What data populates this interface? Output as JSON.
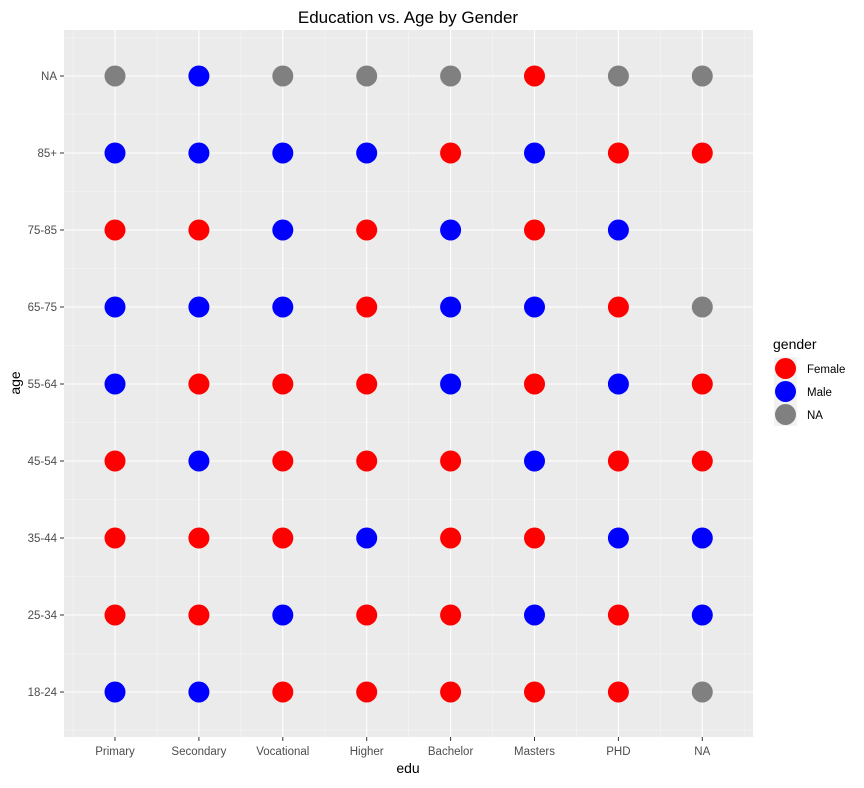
{
  "chart_data": {
    "type": "scatter",
    "title": "Education vs. Age by Gender",
    "xlabel": "edu",
    "ylabel": "age",
    "x_categories": [
      "Primary",
      "Secondary",
      "Vocational",
      "Higher",
      "Bachelor",
      "Masters",
      "PHD",
      "NA"
    ],
    "y_categories": [
      "18-24",
      "25-34",
      "35-44",
      "45-54",
      "55-64",
      "65-75",
      "75-85",
      "85+",
      "NA"
    ],
    "grid": true,
    "legend": {
      "title": "gender",
      "position": "right",
      "entries": [
        {
          "label": "Female",
          "color": "#ff0000"
        },
        {
          "label": "Male",
          "color": "#0000ff"
        },
        {
          "label": "NA",
          "color": "#808080"
        }
      ]
    },
    "colors": {
      "Female": "#ff0000",
      "Male": "#0000ff",
      "NA": "#808080",
      "panel_background": "#ebebeb",
      "grid": "#ffffff"
    },
    "points": [
      {
        "x": "Primary",
        "y": "NA",
        "gender": "NA"
      },
      {
        "x": "Secondary",
        "y": "NA",
        "gender": "Male"
      },
      {
        "x": "Vocational",
        "y": "NA",
        "gender": "NA"
      },
      {
        "x": "Higher",
        "y": "NA",
        "gender": "NA"
      },
      {
        "x": "Bachelor",
        "y": "NA",
        "gender": "NA"
      },
      {
        "x": "Masters",
        "y": "NA",
        "gender": "Female"
      },
      {
        "x": "PHD",
        "y": "NA",
        "gender": "NA"
      },
      {
        "x": "NA",
        "y": "NA",
        "gender": "NA"
      },
      {
        "x": "Primary",
        "y": "85+",
        "gender": "Male"
      },
      {
        "x": "Secondary",
        "y": "85+",
        "gender": "Male"
      },
      {
        "x": "Vocational",
        "y": "85+",
        "gender": "Male"
      },
      {
        "x": "Higher",
        "y": "85+",
        "gender": "Male"
      },
      {
        "x": "Bachelor",
        "y": "85+",
        "gender": "Female"
      },
      {
        "x": "Masters",
        "y": "85+",
        "gender": "Male"
      },
      {
        "x": "PHD",
        "y": "85+",
        "gender": "Female"
      },
      {
        "x": "NA",
        "y": "85+",
        "gender": "Female"
      },
      {
        "x": "Primary",
        "y": "75-85",
        "gender": "Female"
      },
      {
        "x": "Secondary",
        "y": "75-85",
        "gender": "Female"
      },
      {
        "x": "Vocational",
        "y": "75-85",
        "gender": "Male"
      },
      {
        "x": "Higher",
        "y": "75-85",
        "gender": "Female"
      },
      {
        "x": "Bachelor",
        "y": "75-85",
        "gender": "Male"
      },
      {
        "x": "Masters",
        "y": "75-85",
        "gender": "Female"
      },
      {
        "x": "PHD",
        "y": "75-85",
        "gender": "Male"
      },
      {
        "x": "Primary",
        "y": "65-75",
        "gender": "Male"
      },
      {
        "x": "Secondary",
        "y": "65-75",
        "gender": "Male"
      },
      {
        "x": "Vocational",
        "y": "65-75",
        "gender": "Male"
      },
      {
        "x": "Higher",
        "y": "65-75",
        "gender": "Female"
      },
      {
        "x": "Bachelor",
        "y": "65-75",
        "gender": "Male"
      },
      {
        "x": "Masters",
        "y": "65-75",
        "gender": "Male"
      },
      {
        "x": "PHD",
        "y": "65-75",
        "gender": "Female"
      },
      {
        "x": "NA",
        "y": "65-75",
        "gender": "NA"
      },
      {
        "x": "Primary",
        "y": "55-64",
        "gender": "Male"
      },
      {
        "x": "Secondary",
        "y": "55-64",
        "gender": "Female"
      },
      {
        "x": "Vocational",
        "y": "55-64",
        "gender": "Female"
      },
      {
        "x": "Higher",
        "y": "55-64",
        "gender": "Female"
      },
      {
        "x": "Bachelor",
        "y": "55-64",
        "gender": "Male"
      },
      {
        "x": "Masters",
        "y": "55-64",
        "gender": "Female"
      },
      {
        "x": "PHD",
        "y": "55-64",
        "gender": "Male"
      },
      {
        "x": "NA",
        "y": "55-64",
        "gender": "Female"
      },
      {
        "x": "Primary",
        "y": "45-54",
        "gender": "Female"
      },
      {
        "x": "Secondary",
        "y": "45-54",
        "gender": "Male"
      },
      {
        "x": "Vocational",
        "y": "45-54",
        "gender": "Female"
      },
      {
        "x": "Higher",
        "y": "45-54",
        "gender": "Female"
      },
      {
        "x": "Bachelor",
        "y": "45-54",
        "gender": "Female"
      },
      {
        "x": "Masters",
        "y": "45-54",
        "gender": "Male"
      },
      {
        "x": "PHD",
        "y": "45-54",
        "gender": "Female"
      },
      {
        "x": "NA",
        "y": "45-54",
        "gender": "Female"
      },
      {
        "x": "Primary",
        "y": "35-44",
        "gender": "Female"
      },
      {
        "x": "Secondary",
        "y": "35-44",
        "gender": "Female"
      },
      {
        "x": "Vocational",
        "y": "35-44",
        "gender": "Female"
      },
      {
        "x": "Higher",
        "y": "35-44",
        "gender": "Male"
      },
      {
        "x": "Bachelor",
        "y": "35-44",
        "gender": "Female"
      },
      {
        "x": "Masters",
        "y": "35-44",
        "gender": "Female"
      },
      {
        "x": "PHD",
        "y": "35-44",
        "gender": "Male"
      },
      {
        "x": "NA",
        "y": "35-44",
        "gender": "Male"
      },
      {
        "x": "Primary",
        "y": "25-34",
        "gender": "Female"
      },
      {
        "x": "Secondary",
        "y": "25-34",
        "gender": "Female"
      },
      {
        "x": "Vocational",
        "y": "25-34",
        "gender": "Male"
      },
      {
        "x": "Higher",
        "y": "25-34",
        "gender": "Female"
      },
      {
        "x": "Bachelor",
        "y": "25-34",
        "gender": "Female"
      },
      {
        "x": "Masters",
        "y": "25-34",
        "gender": "Male"
      },
      {
        "x": "PHD",
        "y": "25-34",
        "gender": "Female"
      },
      {
        "x": "NA",
        "y": "25-34",
        "gender": "Male"
      },
      {
        "x": "Primary",
        "y": "18-24",
        "gender": "Male"
      },
      {
        "x": "Secondary",
        "y": "18-24",
        "gender": "Male"
      },
      {
        "x": "Vocational",
        "y": "18-24",
        "gender": "Female"
      },
      {
        "x": "Higher",
        "y": "18-24",
        "gender": "Female"
      },
      {
        "x": "Bachelor",
        "y": "18-24",
        "gender": "Female"
      },
      {
        "x": "Masters",
        "y": "18-24",
        "gender": "Female"
      },
      {
        "x": "PHD",
        "y": "18-24",
        "gender": "Female"
      },
      {
        "x": "NA",
        "y": "18-24",
        "gender": "NA"
      }
    ]
  }
}
